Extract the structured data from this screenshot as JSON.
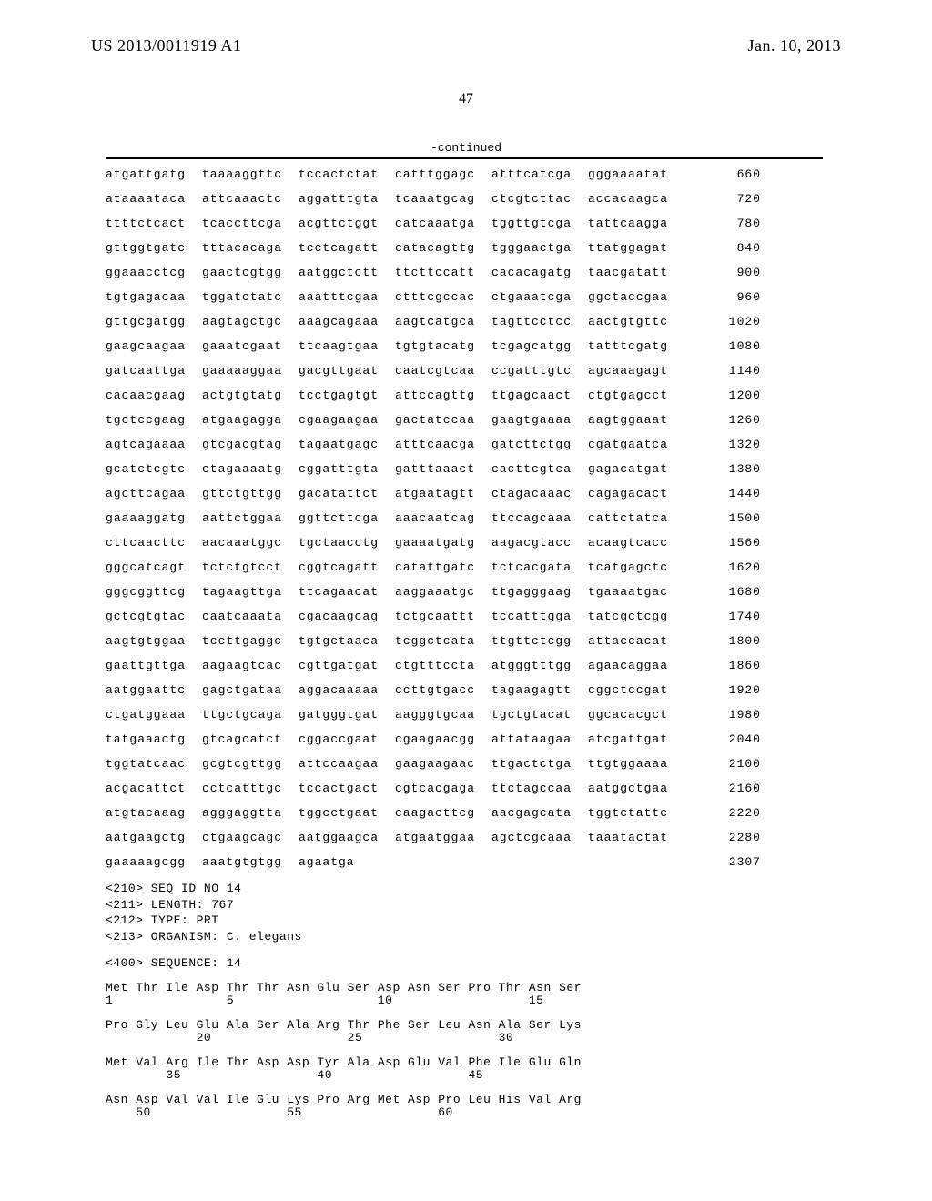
{
  "header": {
    "pub_number": "US 2013/0011919 A1",
    "pub_date": "Jan. 10, 2013",
    "page_number": "47",
    "continued_label": "-continued"
  },
  "dna_sequence": {
    "rows": [
      {
        "groups": [
          "atgattgatg",
          "taaaaggttc",
          "tccactctat",
          "catttggagc",
          "atttcatcga",
          "gggaaaatat"
        ],
        "pos": "660"
      },
      {
        "groups": [
          "ataaaataca",
          "attcaaactc",
          "aggatttgta",
          "tcaaatgcag",
          "ctcgtcttac",
          "accacaagca"
        ],
        "pos": "720"
      },
      {
        "groups": [
          "ttttctcact",
          "tcaccttcga",
          "acgttctggt",
          "catcaaatga",
          "tggttgtcga",
          "tattcaagga"
        ],
        "pos": "780"
      },
      {
        "groups": [
          "gttggtgatc",
          "tttacacaga",
          "tcctcagatt",
          "catacagttg",
          "tgggaactga",
          "ttatggagat"
        ],
        "pos": "840"
      },
      {
        "groups": [
          "ggaaacctcg",
          "gaactcgtgg",
          "aatggctctt",
          "ttcttccatt",
          "cacacagatg",
          "taacgatatt"
        ],
        "pos": "900"
      },
      {
        "groups": [
          "tgtgagacaa",
          "tggatctatc",
          "aaatttcgaa",
          "ctttcgccac",
          "ctgaaatcga",
          "ggctaccgaa"
        ],
        "pos": "960"
      },
      {
        "groups": [
          "gttgcgatgg",
          "aagtagctgc",
          "aaagcagaaa",
          "aagtcatgca",
          "tagttcctcc",
          "aactgtgttc"
        ],
        "pos": "1020"
      },
      {
        "groups": [
          "gaagcaagaa",
          "gaaatcgaat",
          "ttcaagtgaa",
          "tgtgtacatg",
          "tcgagcatgg",
          "tatttcgatg"
        ],
        "pos": "1080"
      },
      {
        "groups": [
          "gatcaattga",
          "gaaaaaggaa",
          "gacgttgaat",
          "caatcgtcaa",
          "ccgatttgtc",
          "agcaaagagt"
        ],
        "pos": "1140"
      },
      {
        "groups": [
          "cacaacgaag",
          "actgtgtatg",
          "tcctgagtgt",
          "attccagttg",
          "ttgagcaact",
          "ctgtgagcct"
        ],
        "pos": "1200"
      },
      {
        "groups": [
          "tgctccgaag",
          "atgaagagga",
          "cgaagaagaa",
          "gactatccaa",
          "gaagtgaaaa",
          "aagtggaaat"
        ],
        "pos": "1260"
      },
      {
        "groups": [
          "agtcagaaaa",
          "gtcgacgtag",
          "tagaatgagc",
          "atttcaacga",
          "gatcttctgg",
          "cgatgaatca"
        ],
        "pos": "1320"
      },
      {
        "groups": [
          "gcatctcgtc",
          "ctagaaaatg",
          "cggatttgta",
          "gatttaaact",
          "cacttcgtca",
          "gagacatgat"
        ],
        "pos": "1380"
      },
      {
        "groups": [
          "agcttcagaa",
          "gttctgttgg",
          "gacatattct",
          "atgaatagtt",
          "ctagacaaac",
          "cagagacact"
        ],
        "pos": "1440"
      },
      {
        "groups": [
          "gaaaaggatg",
          "aattctggaa",
          "ggttcttcga",
          "aaacaatcag",
          "ttccagcaaa",
          "cattctatca"
        ],
        "pos": "1500"
      },
      {
        "groups": [
          "cttcaacttc",
          "aacaaatggc",
          "tgctaacctg",
          "gaaaatgatg",
          "aagacgtacc",
          "acaagtcacc"
        ],
        "pos": "1560"
      },
      {
        "groups": [
          "gggcatcagt",
          "tctctgtcct",
          "cggtcagatt",
          "catattgatc",
          "tctcacgata",
          "tcatgagctc"
        ],
        "pos": "1620"
      },
      {
        "groups": [
          "gggcggttcg",
          "tagaagttga",
          "ttcagaacat",
          "aaggaaatgc",
          "ttgagggaag",
          "tgaaaatgac"
        ],
        "pos": "1680"
      },
      {
        "groups": [
          "gctcgtgtac",
          "caatcaaata",
          "cgacaagcag",
          "tctgcaattt",
          "tccatttgga",
          "tatcgctcgg"
        ],
        "pos": "1740"
      },
      {
        "groups": [
          "aagtgtggaa",
          "tccttgaggc",
          "tgtgctaaca",
          "tcggctcata",
          "ttgttctcgg",
          "attaccacat"
        ],
        "pos": "1800"
      },
      {
        "groups": [
          "gaattgttga",
          "aagaagtcac",
          "cgttgatgat",
          "ctgtttccta",
          "atgggtttgg",
          "agaacaggaa"
        ],
        "pos": "1860"
      },
      {
        "groups": [
          "aatggaattc",
          "gagctgataa",
          "aggacaaaaa",
          "ccttgtgacc",
          "tagaagagtt",
          "cggctccgat"
        ],
        "pos": "1920"
      },
      {
        "groups": [
          "ctgatggaaa",
          "ttgctgcaga",
          "gatgggtgat",
          "aagggtgcaa",
          "tgctgtacat",
          "ggcacacgct"
        ],
        "pos": "1980"
      },
      {
        "groups": [
          "tatgaaactg",
          "gtcagcatct",
          "cggaccgaat",
          "cgaagaacgg",
          "attataagaa",
          "atcgattgat"
        ],
        "pos": "2040"
      },
      {
        "groups": [
          "tggtatcaac",
          "gcgtcgttgg",
          "attccaagaa",
          "gaagaagaac",
          "ttgactctga",
          "ttgtggaaaa"
        ],
        "pos": "2100"
      },
      {
        "groups": [
          "acgacattct",
          "cctcatttgc",
          "tccactgact",
          "cgtcacgaga",
          "ttctagccaa",
          "aatggctgaa"
        ],
        "pos": "2160"
      },
      {
        "groups": [
          "atgtacaaag",
          "agggaggtta",
          "tggcctgaat",
          "caagacttcg",
          "aacgagcata",
          "tggtctattc"
        ],
        "pos": "2220"
      },
      {
        "groups": [
          "aatgaagctg",
          "ctgaagcagc",
          "aatggaagca",
          "atgaatggaa",
          "agctcgcaaa",
          "taaatactat"
        ],
        "pos": "2280"
      },
      {
        "groups": [
          "gaaaaagcgg",
          "aaatgtgtgg",
          "agaatga",
          "",
          "",
          ""
        ],
        "pos": "2307"
      }
    ]
  },
  "meta": {
    "lines": [
      "<210> SEQ ID NO 14",
      "<211> LENGTH: 767",
      "<212> TYPE: PRT",
      "<213> ORGANISM: C. elegans"
    ],
    "sequence_line": "<400> SEQUENCE: 14"
  },
  "protein_sequence": {
    "rows": [
      {
        "aa": "Met Thr Ile Asp Thr Thr Asn Glu Ser Asp Asn Ser Pro Thr Asn Ser",
        "num": "1               5                   10                  15"
      },
      {
        "aa": "Pro Gly Leu Glu Ala Ser Ala Arg Thr Phe Ser Leu Asn Ala Ser Lys",
        "num": "            20                  25                  30"
      },
      {
        "aa": "Met Val Arg Ile Thr Asp Asp Tyr Ala Asp Glu Val Phe Ile Glu Gln",
        "num": "        35                  40                  45"
      },
      {
        "aa": "Asn Asp Val Val Ile Glu Lys Pro Arg Met Asp Pro Leu His Val Arg",
        "num": "    50                  55                  60"
      }
    ]
  }
}
